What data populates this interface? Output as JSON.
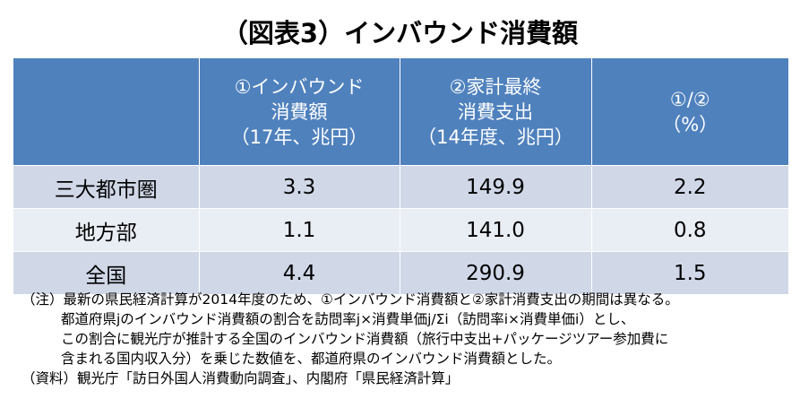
{
  "title": "（図表3）インバウンド消費額",
  "table": {
    "columns": [
      [
        "①インバウンド",
        "消費額",
        "（17年、兆円）"
      ],
      [
        "②家計最終",
        "消費支出",
        "（14年度、兆円）"
      ],
      [
        "①/②",
        "（%）"
      ]
    ],
    "rows": [
      [
        "三大都市圏",
        "3.3",
        "149.9",
        "2.2"
      ],
      [
        "地方部",
        "1.1",
        "141.0",
        "0.8"
      ],
      [
        "全国",
        "4.4",
        "290.9",
        "1.5"
      ]
    ]
  },
  "notes": [
    "（注）最新の県民経済計算が2014年度のため、①インバウンド消費額と②家計消費支出の期間は異なる。",
    "都道府県jのインバウンド消費額の割合を訪問率j×消費単価j/Σi（訪問率i×消費単価i）とし、",
    "この割合に観光庁が推計する全国のインバウンド消費額（旅行中支出+パッケージツアー参加費に",
    "含まれる国内収入分）を乗じた数値を、都道府県のインバウンド消費額とした。",
    "（資料）観光庁「訪日外国人消費動向調査」、内閣府「県民経済計算」"
  ]
}
